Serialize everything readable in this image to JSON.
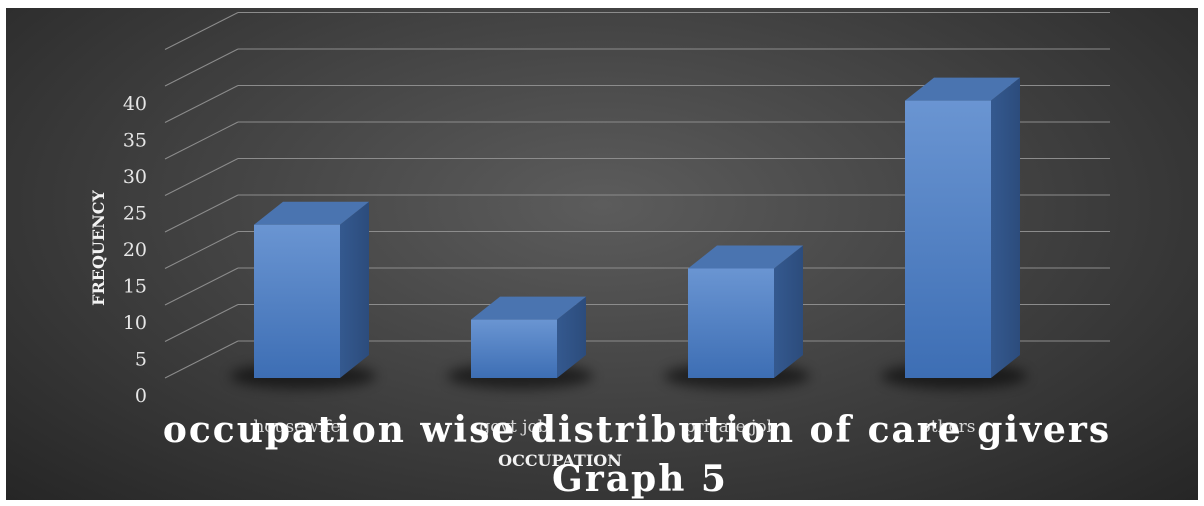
{
  "chart_data": {
    "type": "bar",
    "categories": [
      "housewife",
      "govt job",
      "private job",
      "others"
    ],
    "values": [
      21,
      8,
      15,
      38
    ],
    "title": "occupation wise distribution of care givers",
    "subtitle": "Graph 5",
    "xlabel": "OCCUPATION",
    "ylabel": "FREQUENCY",
    "ylim": [
      0,
      45
    ],
    "yticks": [
      0,
      5,
      10,
      15,
      20,
      25,
      30,
      35,
      40
    ],
    "grid": true,
    "legend": "none",
    "bar_color": "#4f81bd",
    "background_color": "#3c3c3c"
  }
}
